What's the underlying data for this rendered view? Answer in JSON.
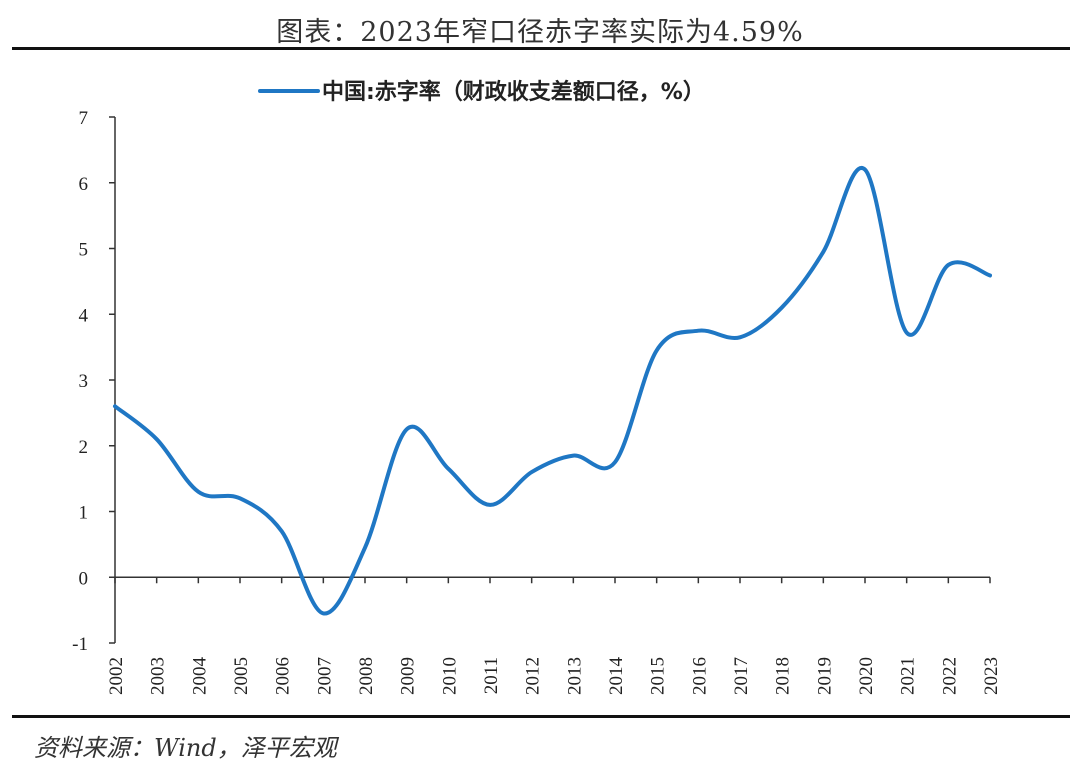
{
  "title": "图表：2023年窄口径赤字率实际为4.59%",
  "source": "资料来源：Wind，泽平宏观",
  "chart_data": {
    "type": "line",
    "title": "图表：2023年窄口径赤字率实际为4.59%",
    "xlabel": "",
    "ylabel": "",
    "categories": [
      "2002",
      "2003",
      "2004",
      "2005",
      "2006",
      "2007",
      "2008",
      "2009",
      "2010",
      "2011",
      "2012",
      "2013",
      "2014",
      "2015",
      "2016",
      "2017",
      "2018",
      "2019",
      "2020",
      "2021",
      "2022",
      "2023"
    ],
    "series": [
      {
        "name": "中国:赤字率（财政收支差额口径，%）",
        "color": "#1f77c4",
        "values": [
          2.6,
          2.1,
          1.3,
          1.2,
          0.7,
          -0.55,
          0.45,
          2.25,
          1.65,
          1.1,
          1.6,
          1.85,
          1.75,
          3.45,
          3.75,
          3.65,
          4.1,
          4.95,
          6.2,
          3.72,
          4.75,
          4.59
        ]
      }
    ],
    "ylim": [
      -1,
      7
    ],
    "yticks": [
      -1,
      0,
      1,
      2,
      3,
      4,
      5,
      6,
      7
    ],
    "grid": false,
    "legend_position": "top-center"
  }
}
